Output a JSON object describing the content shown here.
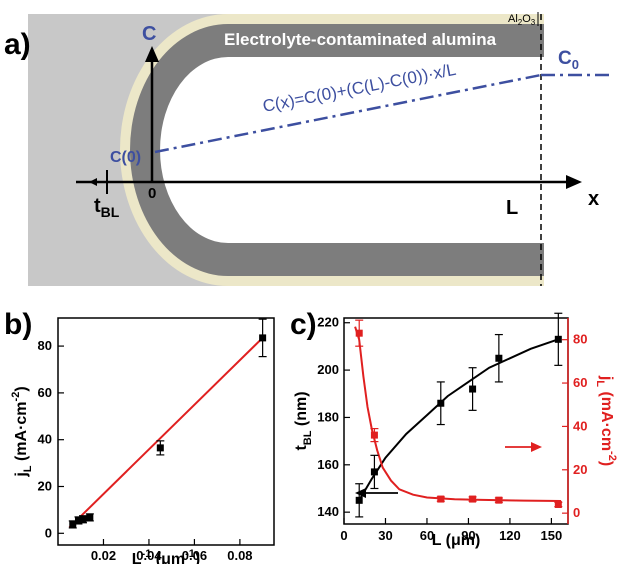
{
  "panel_a": {
    "label": "a)",
    "top_label": "Electrolyte-contaminated alumina",
    "oxide_label_base": "Al",
    "oxide_sub1": "2",
    "oxide_mid": "O",
    "oxide_sub2": "3",
    "c_axis": "C",
    "c0_label_base": "C",
    "c0_sub": "0",
    "equation": "C(x)=C(0)+(C(L)-C(0))·x/L",
    "c_zero": "C(0)",
    "origin": "0",
    "tbl_base": "t",
    "tbl_sub": "BL",
    "l_label": "L",
    "x_label": "x",
    "colors": {
      "background": "#c8c8c8",
      "alumina": "#7d7d7d",
      "oxide": "#ece7c8",
      "pore": "#ffffff",
      "blue": "#3d4fa0"
    }
  },
  "panel_b": {
    "label": "b)"
  },
  "panel_c": {
    "label": "c)",
    "arrow_colors": {
      "left": "#000000",
      "right": "#e02020"
    }
  },
  "chart_data": [
    {
      "type": "scatter",
      "panel": "b",
      "xlabel_base": "L",
      "xlabel_sup": "-1",
      "xlabel_unit_open": " (μm",
      "xlabel_unit_sup": "-1",
      "xlabel_unit_close": ")",
      "ylabel_base": "j",
      "ylabel_sub": "L",
      "ylabel_unit_open": " (mA·cm",
      "ylabel_unit_sup": "-2",
      "ylabel_unit_close": ")",
      "xlim": [
        0,
        0.095
      ],
      "ylim": [
        -5,
        92
      ],
      "xticks": [
        0.02,
        0.04,
        0.06,
        0.08
      ],
      "xtick_labels": [
        "0.02",
        "0.04",
        "0.06",
        "0.08"
      ],
      "yticks": [
        0,
        20,
        40,
        60,
        80
      ],
      "ytick_labels": [
        "0",
        "20",
        "40",
        "60",
        "80"
      ],
      "series": [
        {
          "x": [
            0.0065,
            0.009,
            0.011,
            0.014,
            0.045,
            0.09
          ],
          "y": [
            3.8,
            5.5,
            6.0,
            6.8,
            36.5,
            83.5
          ],
          "yerr": [
            1.5,
            1.5,
            1.5,
            1.5,
            3.0,
            8.0
          ],
          "color": "#000000"
        }
      ],
      "fit": {
        "x": [
          0.005,
          0.0905
        ],
        "y": [
          2.5,
          84
        ],
        "color": "#e02020"
      }
    },
    {
      "type": "scatter",
      "panel": "c",
      "xlabel_base": "L (μm)",
      "ylabel_left_base": "t",
      "ylabel_left_sub": "BL",
      "ylabel_left_unit": " (nm)",
      "ylabel_right_base": "j",
      "ylabel_right_sub": "L",
      "ylabel_right_unit_open": " (mA·cm",
      "ylabel_right_unit_sup": "-2",
      "ylabel_right_unit_close": ")",
      "xlim": [
        0,
        162
      ],
      "ylim_left": [
        135,
        222
      ],
      "ylim_right": [
        -5,
        90
      ],
      "xticks": [
        0,
        30,
        60,
        90,
        120,
        150
      ],
      "xtick_labels": [
        "0",
        "30",
        "60",
        "90",
        "120",
        "150"
      ],
      "yticks_left": [
        140,
        160,
        180,
        200,
        220
      ],
      "ytick_labels_left": [
        "140",
        "160",
        "180",
        "200",
        "220"
      ],
      "yticks_right": [
        0,
        20,
        40,
        60,
        80
      ],
      "ytick_labels_right": [
        "0",
        "20",
        "40",
        "60",
        "80"
      ],
      "series": [
        {
          "axis": "left",
          "color": "#000000",
          "x": [
            11,
            22,
            70,
            93,
            112,
            155
          ],
          "y": [
            145,
            157,
            186,
            192,
            205,
            213
          ],
          "yerr": [
            7,
            7,
            9,
            9,
            10,
            11
          ]
        },
        {
          "axis": "right",
          "color": "#e02020",
          "x": [
            11,
            22,
            70,
            93,
            112,
            155
          ],
          "y": [
            83,
            36,
            6.5,
            6.5,
            6,
            4
          ],
          "yerr": [
            6,
            3,
            1,
            1,
            1,
            1
          ]
        }
      ],
      "fits": [
        {
          "axis": "left",
          "color": "#000000",
          "x": [
            11,
            20,
            30,
            45,
            60,
            75,
            90,
            105,
            120,
            135,
            155
          ],
          "y": [
            145,
            154,
            163,
            173,
            181,
            189,
            195,
            201,
            205,
            209,
            213
          ]
        },
        {
          "axis": "right",
          "color": "#e02020",
          "x": [
            8,
            11,
            14,
            17,
            20,
            24,
            28,
            34,
            40,
            50,
            60,
            80,
            100,
            130,
            157
          ],
          "y": [
            86,
            80,
            63,
            49,
            39,
            29,
            21,
            15,
            11,
            8.5,
            7.2,
            6.4,
            6.1,
            5.8,
            5.6
          ]
        }
      ]
    }
  ]
}
